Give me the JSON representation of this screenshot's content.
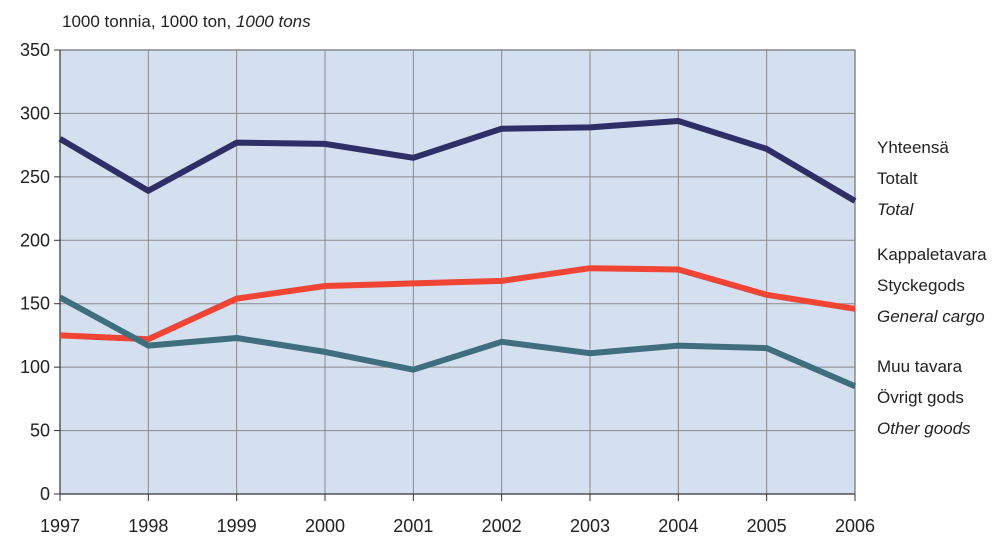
{
  "chart_data": {
    "type": "line",
    "unit_label": {
      "plain": "1000 tonnia, 1000 ton, ",
      "italic": "1000 tons"
    },
    "x": [
      "1997",
      "1998",
      "1999",
      "2000",
      "2001",
      "2002",
      "2003",
      "2004",
      "2005",
      "2006"
    ],
    "ylim": [
      0,
      350
    ],
    "yticks": [
      0,
      50,
      100,
      150,
      200,
      250,
      300,
      350
    ],
    "grid": true,
    "legend_placement": "right",
    "colors": {
      "plot_background": "#d4dff0",
      "grid": "#8a8a8a"
    },
    "series": [
      {
        "label_lines": [
          "Yhteensä",
          "Totalt",
          "Total"
        ],
        "color": "#2e2f66",
        "values": [
          280,
          239,
          277,
          276,
          265,
          288,
          289,
          294,
          272,
          231
        ]
      },
      {
        "label_lines": [
          "Kappaletavara",
          "Styckegods",
          "General cargo"
        ],
        "color": "#f04535",
        "values": [
          125,
          122,
          154,
          164,
          166,
          168,
          178,
          177,
          157,
          146
        ]
      },
      {
        "label_lines": [
          "Muu tavara",
          "Övrigt gods",
          "Other goods"
        ],
        "color": "#3f6f7f",
        "values": [
          155,
          117,
          123,
          112,
          98,
          120,
          111,
          117,
          115,
          85
        ]
      }
    ]
  }
}
